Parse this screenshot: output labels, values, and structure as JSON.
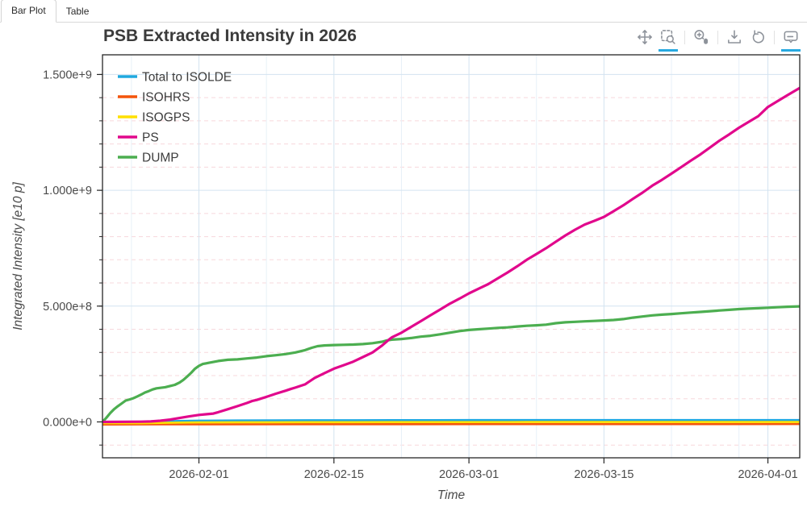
{
  "tabs": [
    {
      "label": "Bar Plot",
      "active": true
    },
    {
      "label": "Table",
      "active": false
    }
  ],
  "title": "PSB Extracted Intensity in 2026",
  "toolbar": {
    "icon_color": "#8d929a",
    "active_underline_color": "#27a9e0",
    "tools": [
      {
        "name": "pan",
        "active": false
      },
      {
        "name": "box-zoom",
        "active": true
      },
      {
        "name": "wheel-zoom",
        "active": false
      },
      {
        "name": "save",
        "active": false
      },
      {
        "name": "reset",
        "active": false
      },
      {
        "name": "hover",
        "active": true
      }
    ]
  },
  "chart_data": {
    "type": "line",
    "title": "PSB Extracted Intensity in 2026",
    "xlabel": "Time",
    "ylabel": "Integrated Intensity [e10 p]",
    "x_axis_type": "datetime",
    "x_start_date": "2026-01-22",
    "x_end_day_offset": 72.3,
    "x_ticks": [
      {
        "day": 10,
        "label": "2026-02-01"
      },
      {
        "day": 24,
        "label": "2026-02-15"
      },
      {
        "day": 38,
        "label": "2026-03-01"
      },
      {
        "day": 52,
        "label": "2026-03-15"
      },
      {
        "day": 69,
        "label": "2026-04-01"
      }
    ],
    "x_minor_tick_days": [
      3,
      17,
      31,
      45,
      59,
      66
    ],
    "y_range": [
      -155000000.0,
      1585000000.0
    ],
    "y_ticks": [
      {
        "value": 0,
        "label": "0.000e+0"
      },
      {
        "value": 500000000.0,
        "label": "5.000e+8"
      },
      {
        "value": 1000000000.0,
        "label": "1.000e+9"
      },
      {
        "value": 1500000000.0,
        "label": "1.500e+9"
      }
    ],
    "y_minor_step": 100000000.0,
    "grid": {
      "major_color": "#d3e3f0",
      "minor_h_color": "#f7d8dc",
      "minor_v_color": "#e7f0f8",
      "axis_color": "#262626",
      "tick_label_color": "#4a4a4a",
      "axis_label_color": "#4a4a4a"
    },
    "legend_position": "top_left",
    "y_unit_multiplier": 100000000.0,
    "series": [
      {
        "name": "Total to ISOLDE",
        "color": "#1fa8df",
        "width": 2.6,
        "points": [
          [
            0,
            0
          ],
          [
            4,
            0
          ],
          [
            6,
            0.02
          ],
          [
            8,
            0.04
          ],
          [
            10,
            0.055
          ],
          [
            14,
            0.06
          ],
          [
            18,
            0.065
          ],
          [
            22,
            0.07
          ],
          [
            26,
            0.072
          ],
          [
            30,
            0.074
          ],
          [
            34,
            0.076
          ],
          [
            38,
            0.078
          ],
          [
            44,
            0.08
          ],
          [
            50,
            0.08
          ],
          [
            56,
            0.08
          ],
          [
            62,
            0.08
          ],
          [
            68,
            0.08
          ],
          [
            72.3,
            0.08
          ]
        ]
      },
      {
        "name": "ISOHRS",
        "color": "#f4540a",
        "width": 2.6,
        "points": [
          [
            0,
            0
          ],
          [
            6,
            0.005
          ],
          [
            10,
            0.01
          ],
          [
            20,
            0.012
          ],
          [
            30,
            0.014
          ],
          [
            40,
            0.015
          ],
          [
            50,
            0.016
          ],
          [
            60,
            0.017
          ],
          [
            72.3,
            0.018
          ]
        ]
      },
      {
        "name": "ISOGPS",
        "color": "#ffe000",
        "width": 2.6,
        "points": [
          [
            0,
            0
          ],
          [
            4,
            0
          ],
          [
            6,
            0.012
          ],
          [
            8,
            0.025
          ],
          [
            10,
            0.035
          ],
          [
            14,
            0.04
          ],
          [
            18,
            0.042
          ],
          [
            22,
            0.044
          ],
          [
            26,
            0.045
          ],
          [
            30,
            0.046
          ],
          [
            34,
            0.047
          ],
          [
            38,
            0.048
          ],
          [
            44,
            0.05
          ],
          [
            50,
            0.05
          ],
          [
            56,
            0.05
          ],
          [
            62,
            0.05
          ],
          [
            68,
            0.05
          ],
          [
            72.3,
            0.05
          ]
        ]
      },
      {
        "name": "PS",
        "color": "#e1088c",
        "width": 3.2,
        "points": [
          [
            0,
            0
          ],
          [
            4,
            0.01
          ],
          [
            5,
            0.02
          ],
          [
            6,
            0.05
          ],
          [
            7,
            0.1
          ],
          [
            8,
            0.17
          ],
          [
            9,
            0.24
          ],
          [
            10,
            0.3
          ],
          [
            10.7,
            0.33
          ],
          [
            11.5,
            0.36
          ],
          [
            12,
            0.42
          ],
          [
            13,
            0.55
          ],
          [
            14,
            0.68
          ],
          [
            15,
            0.82
          ],
          [
            15.5,
            0.9
          ],
          [
            16,
            0.95
          ],
          [
            17,
            1.08
          ],
          [
            18,
            1.22
          ],
          [
            19,
            1.35
          ],
          [
            19.5,
            1.42
          ],
          [
            20,
            1.48
          ],
          [
            21,
            1.62
          ],
          [
            22,
            1.9
          ],
          [
            23,
            2.1
          ],
          [
            24,
            2.3
          ],
          [
            25,
            2.45
          ],
          [
            26,
            2.6
          ],
          [
            27,
            2.8
          ],
          [
            28,
            3.0
          ],
          [
            29,
            3.3
          ],
          [
            29.7,
            3.55
          ],
          [
            30,
            3.65
          ],
          [
            31,
            3.85
          ],
          [
            32,
            4.1
          ],
          [
            33,
            4.35
          ],
          [
            34,
            4.6
          ],
          [
            35,
            4.85
          ],
          [
            36,
            5.1
          ],
          [
            37,
            5.32
          ],
          [
            38,
            5.55
          ],
          [
            39,
            5.75
          ],
          [
            40,
            5.95
          ],
          [
            41,
            6.2
          ],
          [
            42,
            6.45
          ],
          [
            43,
            6.72
          ],
          [
            44,
            7.0
          ],
          [
            45,
            7.25
          ],
          [
            46,
            7.5
          ],
          [
            47,
            7.78
          ],
          [
            48,
            8.05
          ],
          [
            49,
            8.3
          ],
          [
            50,
            8.52
          ],
          [
            51,
            8.68
          ],
          [
            52,
            8.85
          ],
          [
            53,
            9.1
          ],
          [
            54,
            9.35
          ],
          [
            55,
            9.63
          ],
          [
            56,
            9.9
          ],
          [
            57,
            10.2
          ],
          [
            58,
            10.45
          ],
          [
            59,
            10.72
          ],
          [
            60,
            11.0
          ],
          [
            61,
            11.28
          ],
          [
            62,
            11.55
          ],
          [
            63,
            11.85
          ],
          [
            64,
            12.15
          ],
          [
            65,
            12.42
          ],
          [
            66,
            12.7
          ],
          [
            67,
            12.95
          ],
          [
            68,
            13.2
          ],
          [
            69,
            13.6
          ],
          [
            70,
            13.85
          ],
          [
            71,
            14.1
          ],
          [
            72.3,
            14.42
          ]
        ]
      },
      {
        "name": "DUMP",
        "color": "#4cae50",
        "width": 3.2,
        "points": [
          [
            0,
            0
          ],
          [
            0.4,
            0.18
          ],
          [
            0.8,
            0.38
          ],
          [
            1.2,
            0.55
          ],
          [
            1.6,
            0.68
          ],
          [
            2,
            0.8
          ],
          [
            2.4,
            0.92
          ],
          [
            2.8,
            0.97
          ],
          [
            3.2,
            1.02
          ],
          [
            3.6,
            1.1
          ],
          [
            4,
            1.18
          ],
          [
            4.4,
            1.27
          ],
          [
            4.8,
            1.33
          ],
          [
            5.2,
            1.4
          ],
          [
            5.6,
            1.45
          ],
          [
            6,
            1.47
          ],
          [
            6.5,
            1.5
          ],
          [
            7,
            1.55
          ],
          [
            7.5,
            1.6
          ],
          [
            8,
            1.7
          ],
          [
            8.4,
            1.82
          ],
          [
            8.8,
            1.97
          ],
          [
            9.2,
            2.12
          ],
          [
            9.6,
            2.3
          ],
          [
            10,
            2.42
          ],
          [
            10.4,
            2.5
          ],
          [
            11,
            2.55
          ],
          [
            12,
            2.63
          ],
          [
            13,
            2.68
          ],
          [
            14,
            2.7
          ],
          [
            15,
            2.74
          ],
          [
            16,
            2.78
          ],
          [
            17,
            2.84
          ],
          [
            18,
            2.88
          ],
          [
            19,
            2.93
          ],
          [
            20,
            3.0
          ],
          [
            21,
            3.1
          ],
          [
            21.7,
            3.2
          ],
          [
            22.3,
            3.27
          ],
          [
            23,
            3.3
          ],
          [
            24,
            3.32
          ],
          [
            25,
            3.33
          ],
          [
            26,
            3.34
          ],
          [
            27,
            3.36
          ],
          [
            28,
            3.4
          ],
          [
            29,
            3.46
          ],
          [
            29.5,
            3.52
          ],
          [
            30,
            3.55
          ],
          [
            31,
            3.58
          ],
          [
            32,
            3.62
          ],
          [
            33,
            3.68
          ],
          [
            34,
            3.72
          ],
          [
            35,
            3.78
          ],
          [
            36,
            3.85
          ],
          [
            37,
            3.92
          ],
          [
            38,
            3.97
          ],
          [
            39,
            4.0
          ],
          [
            40,
            4.03
          ],
          [
            41,
            4.06
          ],
          [
            42,
            4.08
          ],
          [
            43,
            4.12
          ],
          [
            44,
            4.15
          ],
          [
            45,
            4.17
          ],
          [
            46,
            4.2
          ],
          [
            47,
            4.26
          ],
          [
            48,
            4.3
          ],
          [
            49,
            4.32
          ],
          [
            50,
            4.34
          ],
          [
            51,
            4.36
          ],
          [
            52,
            4.38
          ],
          [
            53,
            4.4
          ],
          [
            54,
            4.44
          ],
          [
            55,
            4.5
          ],
          [
            56,
            4.55
          ],
          [
            57,
            4.6
          ],
          [
            58,
            4.63
          ],
          [
            59,
            4.66
          ],
          [
            60,
            4.69
          ],
          [
            61,
            4.72
          ],
          [
            62,
            4.75
          ],
          [
            63,
            4.78
          ],
          [
            64,
            4.81
          ],
          [
            65,
            4.84
          ],
          [
            66,
            4.87
          ],
          [
            67,
            4.89
          ],
          [
            68,
            4.91
          ],
          [
            69,
            4.93
          ],
          [
            70,
            4.95
          ],
          [
            71,
            4.97
          ],
          [
            72.3,
            4.99
          ]
        ]
      }
    ]
  }
}
